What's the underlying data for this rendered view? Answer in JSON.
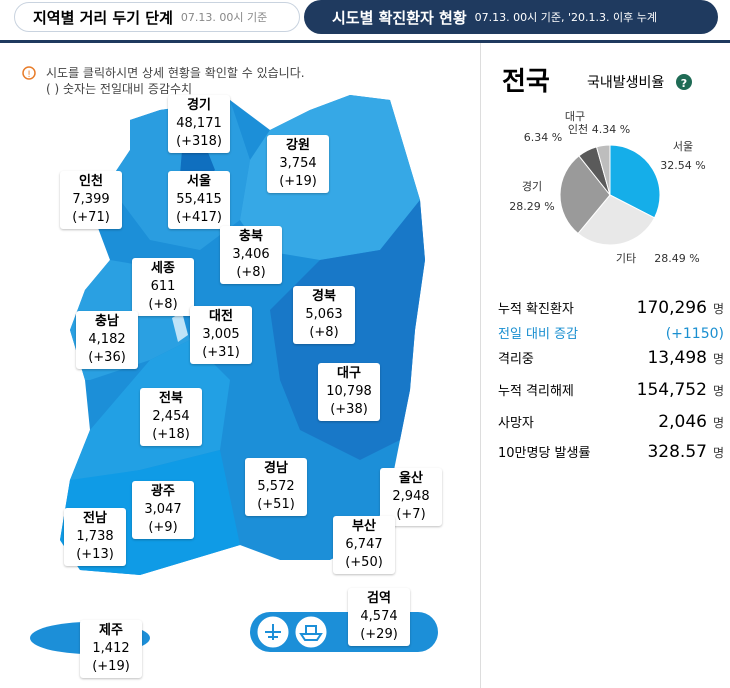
{
  "tabs": [
    {
      "label": "지역별 거리 두기 단계",
      "note": "07.13. 00시 기준"
    },
    {
      "label": "시도별 확진환자 현황",
      "note": "07.13. 00시 기준, '20.1.3. 이후 누계"
    }
  ],
  "notice": [
    "시도를 클릭하시면 상세 현황을 확인할 수 있습니다.",
    "( ) 숫자는 전일대비 증감수치"
  ],
  "regions": [
    {
      "name": "경기",
      "total": "48,171",
      "change": "(+318)"
    },
    {
      "name": "강원",
      "total": "3,754",
      "change": "(+19)"
    },
    {
      "name": "인천",
      "total": "7,399",
      "change": "(+71)"
    },
    {
      "name": "서울",
      "total": "55,415",
      "change": "(+417)"
    },
    {
      "name": "충북",
      "total": "3,406",
      "change": "(+8)"
    },
    {
      "name": "세종",
      "total": "611",
      "change": "(+8)"
    },
    {
      "name": "경북",
      "total": "5,063",
      "change": "(+8)"
    },
    {
      "name": "대전",
      "total": "3,005",
      "change": "(+31)"
    },
    {
      "name": "충남",
      "total": "4,182",
      "change": "(+36)"
    },
    {
      "name": "대구",
      "total": "10,798",
      "change": "(+38)"
    },
    {
      "name": "전북",
      "total": "2,454",
      "change": "(+18)"
    },
    {
      "name": "경남",
      "total": "5,572",
      "change": "(+51)"
    },
    {
      "name": "울산",
      "total": "2,948",
      "change": "(+7)"
    },
    {
      "name": "광주",
      "total": "3,047",
      "change": "(+9)"
    },
    {
      "name": "전남",
      "total": "1,738",
      "change": "(+13)"
    },
    {
      "name": "부산",
      "total": "6,747",
      "change": "(+50)"
    },
    {
      "name": "검역",
      "total": "4,574",
      "change": "(+29)"
    },
    {
      "name": "제주",
      "total": "1,412",
      "change": "(+19)"
    }
  ],
  "summary": {
    "title": "전국",
    "ratio_label": "국내발생비율",
    "help": "?"
  },
  "chart_data": {
    "type": "pie",
    "categories": [
      "서울",
      "기타",
      "경기",
      "대구",
      "인천"
    ],
    "values": [
      32.54,
      28.49,
      28.29,
      6.34,
      4.34
    ],
    "value_labels": [
      "32.54 %",
      "28.49 %",
      "28.29 %",
      "6.34 %",
      "4.34 %"
    ],
    "colors": [
      "#15aee9",
      "#e8e8e8",
      "#9a9a9a",
      "#5a5a5a",
      "#bdbdbd"
    ]
  },
  "stats": [
    {
      "label": "누적 확진환자",
      "value": "170,296",
      "unit": "명"
    },
    {
      "label": "전일 대비 증감",
      "value": "(+1150)"
    },
    {
      "label": "격리중",
      "value": "13,498",
      "unit": "명"
    },
    {
      "label": "누적 격리해제",
      "value": "154,752",
      "unit": "명"
    },
    {
      "label": "사망자",
      "value": "2,046",
      "unit": "명"
    },
    {
      "label": "10만명당 발생률",
      "value": "328.57",
      "unit": "명"
    }
  ]
}
